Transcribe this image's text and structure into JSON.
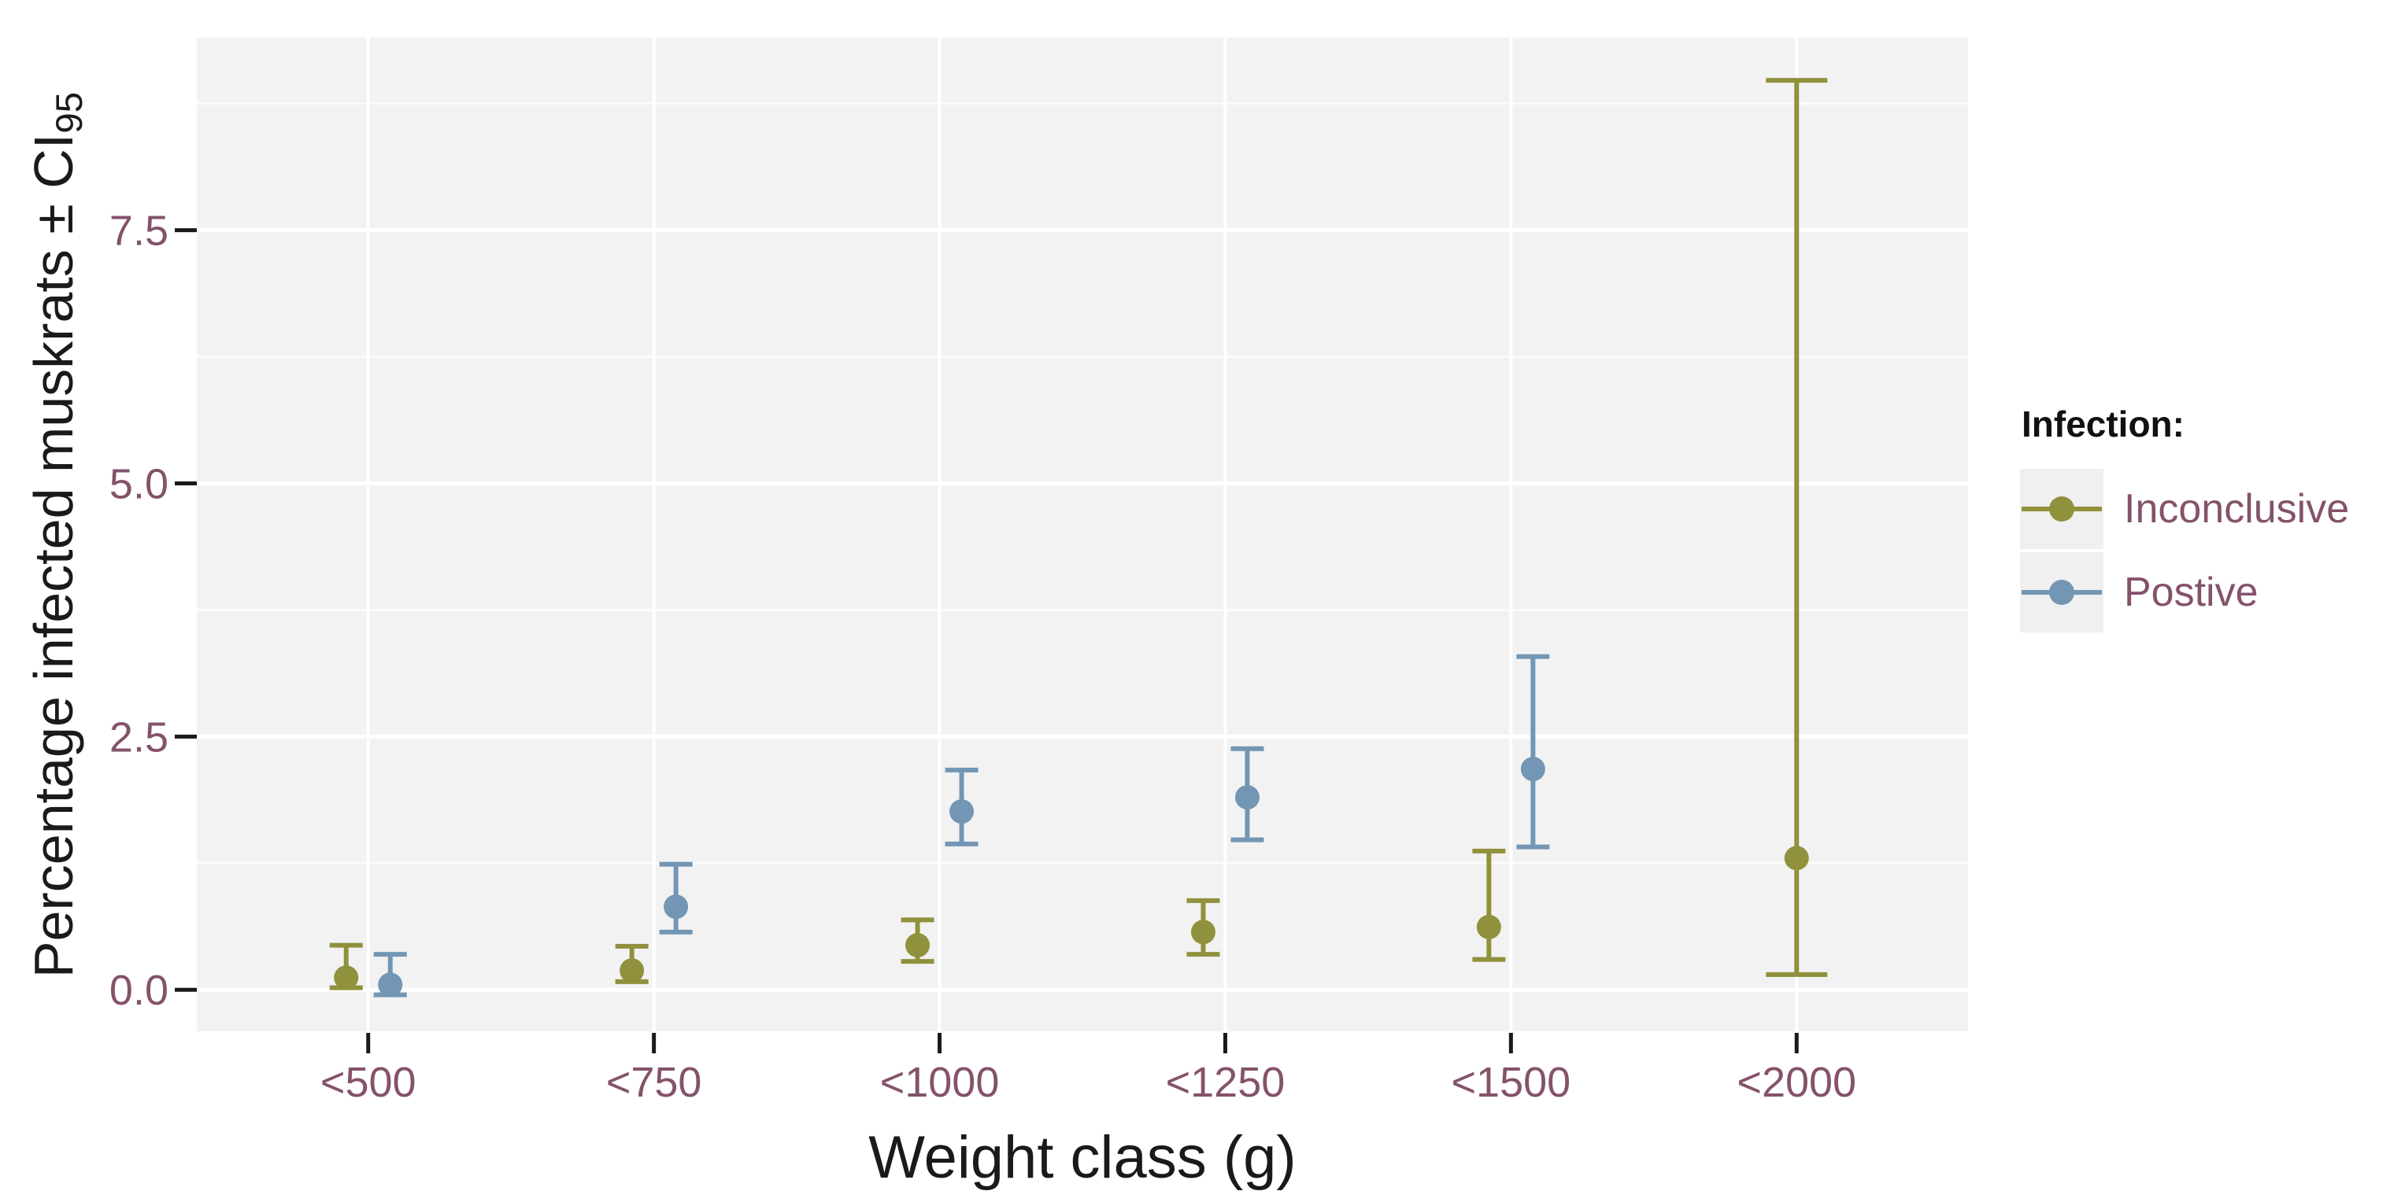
{
  "chart_data": {
    "type": "scatter",
    "subtype": "pointrange_with_errorbars",
    "title": "",
    "xlabel": "Weight class (g)",
    "ylabel": "Percentage infected muskrats ± CI",
    "ylabel_subscript": "95",
    "categories": [
      "<500",
      "<750",
      "<1000",
      "<1250",
      "<1500",
      "<2000"
    ],
    "ylim": [
      -0.41,
      9.4
    ],
    "yticks": {
      "values": [
        0,
        2.5,
        5,
        7.5
      ],
      "labels": [
        "0.0",
        "2.5",
        "5.0",
        "7.5"
      ]
    },
    "yminor": [
      1.25,
      3.75,
      6.25,
      8.75
    ],
    "grid": "white major+minor horizontal and major vertical lines on gray panel",
    "legend": {
      "title": "Infection:",
      "position": "right"
    },
    "series": [
      {
        "name": "Inconclusive",
        "color": "#90913c",
        "points": [
          {
            "category": "<500",
            "y": 0.12,
            "lo": 0.02,
            "hi": 0.44
          },
          {
            "category": "<750",
            "y": 0.19,
            "lo": 0.08,
            "hi": 0.43
          },
          {
            "category": "<1000",
            "y": 0.44,
            "lo": 0.28,
            "hi": 0.69
          },
          {
            "category": "<1250",
            "y": 0.57,
            "lo": 0.35,
            "hi": 0.88
          },
          {
            "category": "<1500",
            "y": 0.62,
            "lo": 0.3,
            "hi": 1.37
          },
          {
            "category": "<2000",
            "y": 1.3,
            "lo": 0.15,
            "hi": 8.98
          }
        ]
      },
      {
        "name": "Postive",
        "color": "#7296b4",
        "points": [
          {
            "category": "<500",
            "y": 0.05,
            "lo": -0.05,
            "hi": 0.35
          },
          {
            "category": "<750",
            "y": 0.82,
            "lo": 0.57,
            "hi": 1.24
          },
          {
            "category": "<1000",
            "y": 1.76,
            "lo": 1.44,
            "hi": 2.17
          },
          {
            "category": "<1250",
            "y": 1.9,
            "lo": 1.48,
            "hi": 2.38
          },
          {
            "category": "<1500",
            "y": 2.18,
            "lo": 1.41,
            "hi": 3.29
          },
          {
            "category": "<2000",
            "y": null,
            "lo": null,
            "hi": null
          }
        ]
      }
    ],
    "colors": {
      "axis_text": "#84526b",
      "axis_title": "#1a1a1a",
      "tick_mark": "#1a1a1a",
      "panel_background": "#f2f2f2",
      "gridline": "#ffffff",
      "legend_key_background": "#f0f0f0"
    }
  }
}
